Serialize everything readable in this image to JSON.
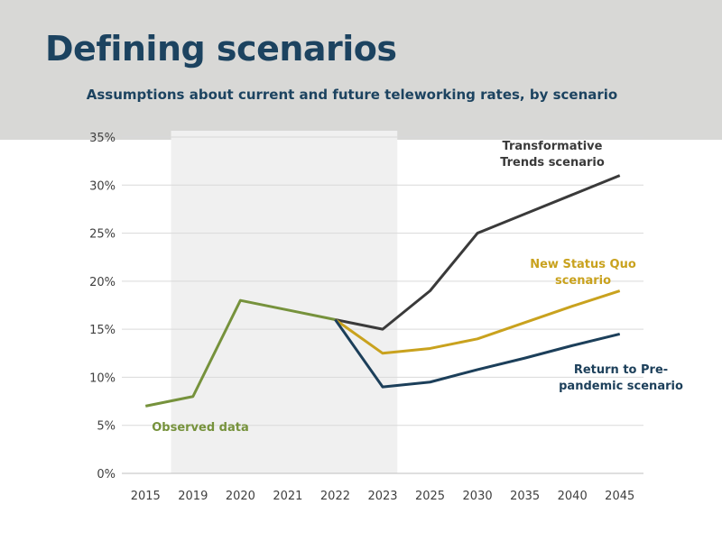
{
  "page": {
    "title": "Defining scenarios"
  },
  "chart_data": {
    "type": "line",
    "title": "Assumptions about current and future teleworking rates, by scenario",
    "xlabel": "",
    "ylabel": "",
    "categories": [
      "2015",
      "2019",
      "2020",
      "2021",
      "2022",
      "2023",
      "2025",
      "2030",
      "2035",
      "2040",
      "2045"
    ],
    "ylim": [
      0,
      35
    ],
    "yticks": [
      0,
      5,
      10,
      15,
      20,
      25,
      30,
      35
    ],
    "ytick_labels": [
      "0%",
      "5%",
      "10%",
      "15%",
      "20%",
      "25%",
      "30%",
      "35%"
    ],
    "grid": true,
    "shaded_region": {
      "from": "2019",
      "to": "2023"
    },
    "series": [
      {
        "name": "Observed data",
        "color": "#76923c",
        "values": [
          7,
          8,
          18,
          17,
          16,
          null,
          null,
          null,
          null,
          null,
          null
        ]
      },
      {
        "name": "Transformative Trends scenario",
        "label_lines": [
          "Transformative",
          "Trends scenario"
        ],
        "color": "#3a3a3a",
        "values": [
          null,
          null,
          null,
          null,
          16,
          15,
          19,
          25,
          27,
          29,
          31
        ]
      },
      {
        "name": "New Status Quo scenario",
        "label_lines": [
          "New Status Quo",
          "scenario"
        ],
        "color": "#c9a21e",
        "values": [
          null,
          null,
          null,
          null,
          16,
          12.5,
          13,
          14,
          15.7,
          17.4,
          19
        ]
      },
      {
        "name": "Return to Pre-pandemic scenario",
        "label_lines": [
          "Return to Pre-",
          "pandemic scenario"
        ],
        "color": "#1c3f5a",
        "values": [
          null,
          null,
          null,
          null,
          16,
          9,
          9.5,
          10.8,
          12,
          13.3,
          14.5
        ]
      }
    ]
  }
}
